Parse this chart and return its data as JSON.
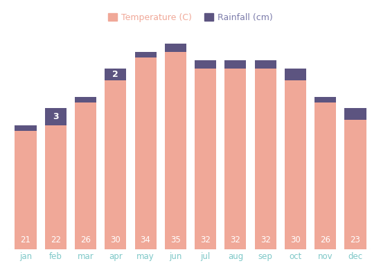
{
  "months": [
    "jan",
    "feb",
    "mar",
    "apr",
    "may",
    "jun",
    "jul",
    "aug",
    "sep",
    "oct",
    "nov",
    "dec"
  ],
  "temperature": [
    21,
    22,
    26,
    30,
    34,
    35,
    32,
    32,
    32,
    30,
    26,
    23
  ],
  "rainfall": [
    1,
    3,
    1,
    2,
    1,
    1.5,
    1.5,
    1.5,
    1.5,
    2,
    1,
    2
  ],
  "temp_color": "#F0A898",
  "rain_color": "#5C5480",
  "background_color": "#FFFFFF",
  "tick_color": "#7EC8C8",
  "value_color": "#FFFFFF",
  "rainfall_label_months": [
    "feb",
    "apr"
  ],
  "rainfall_labels": {
    "feb": "3",
    "apr": "2"
  },
  "legend_temp": "Temperature (C)",
  "legend_rain": "Rainfall (cm)",
  "legend_text_color": "#F0A898",
  "legend_rain_text_color": "#7B7BAA"
}
